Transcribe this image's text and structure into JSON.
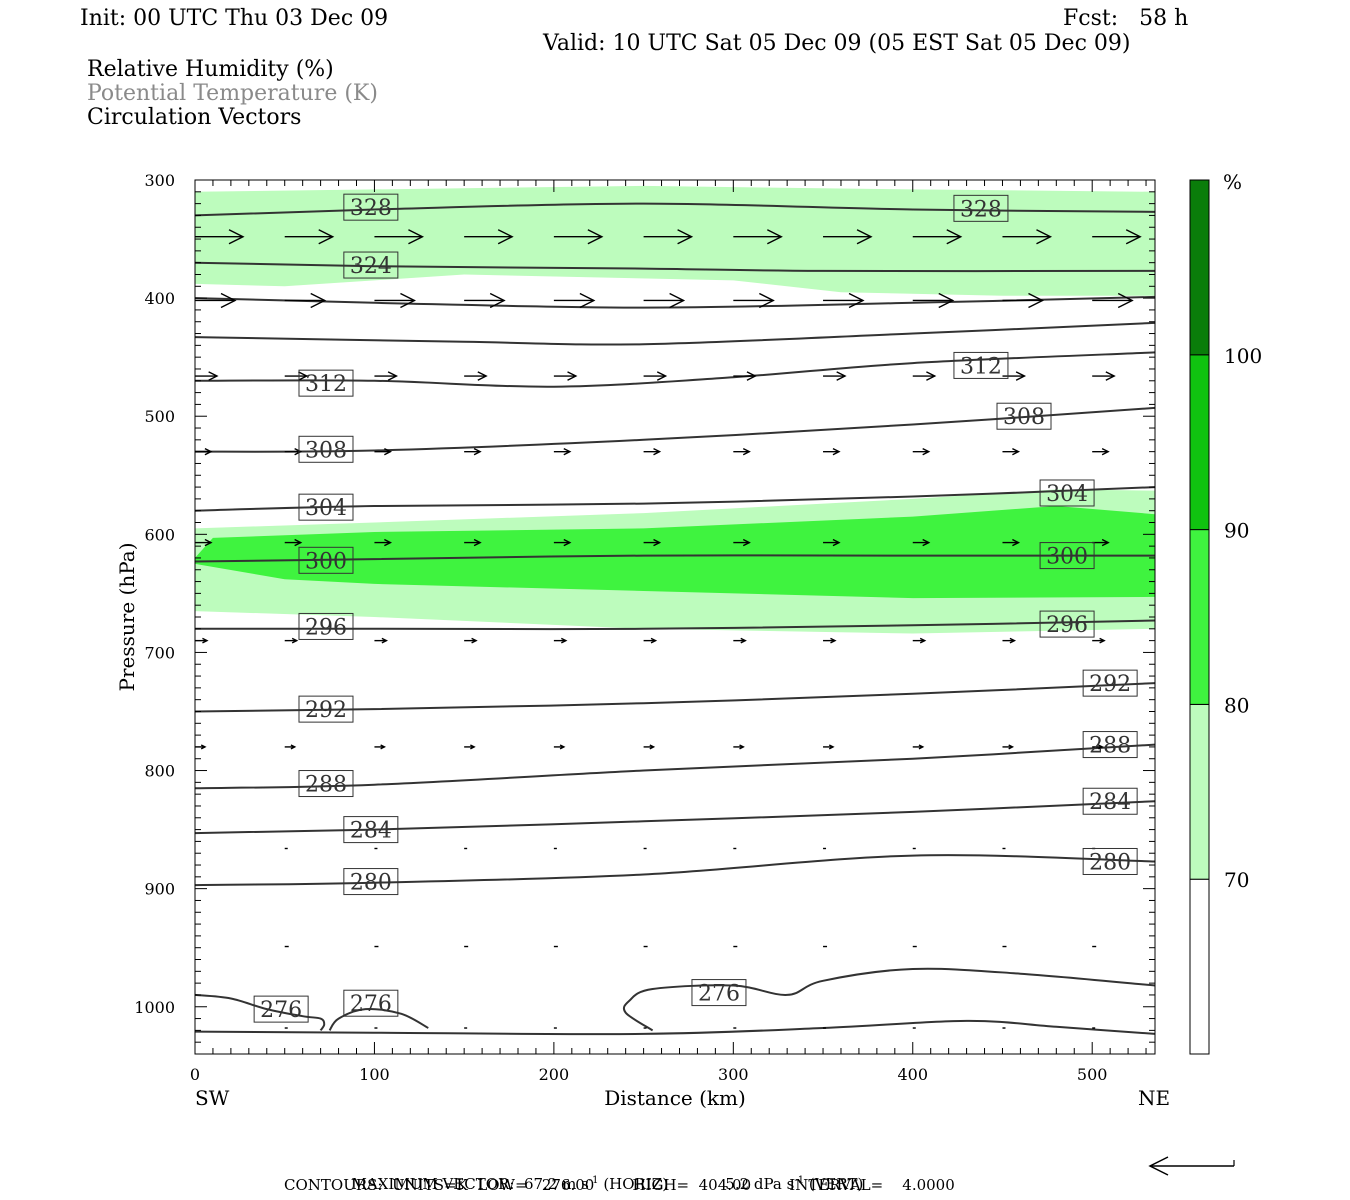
{
  "header": {
    "init": "Init: 00 UTC Thu 03 Dec 09",
    "fcst": "Fcst:   58 h",
    "valid": "Valid: 10 UTC Sat 05 Dec 09 (05 EST Sat 05 Dec 09)",
    "field1": "Relative Humidity (%)",
    "field2": "Potential Temperature (K)",
    "field3": "Circulation Vectors"
  },
  "footer": {
    "maxvec_label": "MAXIMUM VECTOR:",
    "maxvec_horiz": "67.2 m s",
    "horiz_tag": "(HORIZ)",
    "maxvec_vert": "5.2 dPa s",
    "vert_tag": "(VERT)",
    "exponent": "-1",
    "contours": "CONTOURS:  UNITS=K  LOW=   276.00        HIGH=  404.00        INTERVAL=    4.0000"
  },
  "colors": {
    "rh70": "#bdfcbd",
    "rh80": "#3ff33f",
    "rh90": "#10c310",
    "rh100": "#0a7d0a",
    "contour": "#333333"
  },
  "chart_data": {
    "type": "cross-section",
    "xlabel": "Distance (km)",
    "ylabel": "Pressure (hPa)",
    "x_ticks": [
      0,
      100,
      200,
      300,
      400,
      500
    ],
    "y_ticks": [
      300,
      400,
      500,
      600,
      700,
      800,
      900,
      1000
    ],
    "xlim": [
      0,
      535
    ],
    "ylim": [
      300,
      1040
    ],
    "x_end_labels": {
      "left": "SW",
      "right": "NE"
    },
    "colorbar": {
      "unit": "%",
      "levels": [
        70,
        80,
        90,
        100
      ]
    },
    "rh_regions": [
      {
        "level": 70,
        "top": [
          [
            0,
            310
          ],
          [
            100,
            308
          ],
          [
            250,
            305
          ],
          [
            400,
            308
          ],
          [
            535,
            310
          ]
        ],
        "bottom": [
          [
            0,
            388
          ],
          [
            50,
            390
          ],
          [
            150,
            380
          ],
          [
            300,
            385
          ],
          [
            360,
            395
          ],
          [
            450,
            398
          ],
          [
            535,
            398
          ]
        ]
      },
      {
        "level": 70,
        "top": [
          [
            0,
            595
          ],
          [
            100,
            590
          ],
          [
            250,
            582
          ],
          [
            400,
            570
          ],
          [
            480,
            562
          ],
          [
            535,
            563
          ]
        ],
        "bottom": [
          [
            0,
            665
          ],
          [
            100,
            670
          ],
          [
            250,
            680
          ],
          [
            400,
            684
          ],
          [
            535,
            680
          ]
        ]
      },
      {
        "level": 80,
        "top": [
          [
            0,
            620
          ],
          [
            10,
            603
          ],
          [
            100,
            598
          ],
          [
            250,
            595
          ],
          [
            400,
            585
          ],
          [
            480,
            576
          ],
          [
            535,
            583
          ]
        ],
        "bottom": [
          [
            0,
            625
          ],
          [
            50,
            638
          ],
          [
            100,
            642
          ],
          [
            250,
            648
          ],
          [
            400,
            654
          ],
          [
            535,
            653
          ]
        ]
      }
    ],
    "isentropes": [
      {
        "theta": 328,
        "pts": [
          [
            0,
            330
          ],
          [
            100,
            325
          ],
          [
            250,
            320
          ],
          [
            400,
            325
          ],
          [
            535,
            327
          ]
        ],
        "labels": [
          [
            98,
            323
          ],
          [
            438,
            324
          ]
        ]
      },
      {
        "theta": 324,
        "pts": [
          [
            0,
            370
          ],
          [
            100,
            373
          ],
          [
            250,
            375
          ],
          [
            350,
            377
          ],
          [
            535,
            377
          ]
        ],
        "labels": [
          [
            98,
            372
          ]
        ]
      },
      {
        "theta": 320,
        "pts": [
          [
            0,
            400
          ],
          [
            100,
            404
          ],
          [
            250,
            408
          ],
          [
            400,
            404
          ],
          [
            535,
            399
          ]
        ],
        "labels": []
      },
      {
        "theta": 316,
        "pts": [
          [
            0,
            433
          ],
          [
            150,
            437
          ],
          [
            250,
            439
          ],
          [
            400,
            430
          ],
          [
            535,
            421
          ]
        ],
        "labels": []
      },
      {
        "theta": 312,
        "pts": [
          [
            0,
            470
          ],
          [
            100,
            470
          ],
          [
            200,
            475
          ],
          [
            300,
            467
          ],
          [
            400,
            455
          ],
          [
            535,
            446
          ]
        ],
        "labels": [
          [
            73,
            472
          ],
          [
            438,
            457
          ]
        ]
      },
      {
        "theta": 308,
        "pts": [
          [
            0,
            530
          ],
          [
            100,
            529
          ],
          [
            250,
            520
          ],
          [
            400,
            507
          ],
          [
            535,
            493
          ]
        ],
        "labels": [
          [
            73,
            528
          ],
          [
            462,
            500
          ]
        ]
      },
      {
        "theta": 304,
        "pts": [
          [
            0,
            580
          ],
          [
            100,
            576
          ],
          [
            250,
            574
          ],
          [
            400,
            568
          ],
          [
            535,
            560
          ]
        ],
        "labels": [
          [
            73,
            577
          ],
          [
            486,
            565
          ]
        ]
      },
      {
        "theta": 300,
        "pts": [
          [
            0,
            623
          ],
          [
            100,
            621
          ],
          [
            250,
            618
          ],
          [
            400,
            618
          ],
          [
            535,
            618
          ]
        ],
        "labels": [
          [
            73,
            622
          ],
          [
            486,
            618
          ]
        ]
      },
      {
        "theta": 296,
        "pts": [
          [
            0,
            680
          ],
          [
            100,
            680
          ],
          [
            250,
            680
          ],
          [
            400,
            677
          ],
          [
            535,
            673
          ]
        ],
        "labels": [
          [
            73,
            678
          ],
          [
            486,
            676
          ]
        ]
      },
      {
        "theta": 292,
        "pts": [
          [
            0,
            750
          ],
          [
            100,
            748
          ],
          [
            250,
            743
          ],
          [
            400,
            735
          ],
          [
            535,
            726
          ]
        ],
        "labels": [
          [
            73,
            748
          ],
          [
            510,
            726
          ]
        ]
      },
      {
        "theta": 288,
        "pts": [
          [
            0,
            815
          ],
          [
            100,
            812
          ],
          [
            250,
            800
          ],
          [
            400,
            790
          ],
          [
            535,
            778
          ]
        ],
        "labels": [
          [
            73,
            811
          ],
          [
            510,
            778
          ]
        ]
      },
      {
        "theta": 284,
        "pts": [
          [
            0,
            853
          ],
          [
            100,
            850
          ],
          [
            250,
            843
          ],
          [
            400,
            835
          ],
          [
            535,
            826
          ]
        ],
        "labels": [
          [
            98,
            850
          ],
          [
            510,
            826
          ]
        ]
      },
      {
        "theta": 280,
        "pts": [
          [
            0,
            897
          ],
          [
            100,
            895
          ],
          [
            250,
            888
          ],
          [
            400,
            872
          ],
          [
            535,
            877
          ]
        ],
        "labels": [
          [
            98,
            894
          ],
          [
            510,
            877
          ]
        ]
      },
      {
        "theta": 276,
        "pts": [
          [
            0,
            990
          ],
          [
            20,
            993
          ],
          [
            40,
            1002
          ],
          [
            60,
            1008
          ],
          [
            70,
            1010
          ],
          [
            72,
            1015
          ],
          [
            70,
            1020
          ]
        ],
        "labels": [
          [
            48,
            1002
          ]
        ]
      },
      {
        "theta": 276,
        "pts": [
          [
            75,
            1020
          ],
          [
            80,
            1010
          ],
          [
            95,
            1002
          ],
          [
            115,
            1006
          ],
          [
            130,
            1018
          ]
        ],
        "labels": [
          [
            98,
            997
          ]
        ]
      },
      {
        "theta": 276,
        "pts": [
          [
            255,
            1020
          ],
          [
            240,
            1005
          ],
          [
            242,
            995
          ],
          [
            255,
            985
          ],
          [
            300,
            982
          ],
          [
            330,
            990
          ],
          [
            350,
            978
          ],
          [
            400,
            968
          ],
          [
            460,
            972
          ],
          [
            535,
            982
          ]
        ],
        "labels": [
          [
            292,
            988
          ]
        ]
      },
      {
        "theta": 276,
        "pts": [
          [
            0,
            1021
          ],
          [
            100,
            1022
          ],
          [
            250,
            1023
          ],
          [
            350,
            1018
          ],
          [
            430,
            1012
          ],
          [
            480,
            1017
          ],
          [
            535,
            1023
          ]
        ],
        "labels": []
      }
    ],
    "vectors": [
      {
        "p": 348,
        "dx": 48,
        "x": [
          0,
          50,
          100,
          150,
          200,
          250,
          300,
          350,
          400,
          450,
          500
        ]
      },
      {
        "p": 402,
        "dx": 40,
        "x": [
          0,
          50,
          100,
          150,
          200,
          250,
          300,
          350,
          400,
          450,
          500
        ]
      },
      {
        "p": 466,
        "dx": 22,
        "x": [
          0,
          50,
          100,
          150,
          200,
          250,
          300,
          350,
          400,
          450,
          500
        ]
      },
      {
        "p": 530,
        "dx": 16,
        "x": [
          0,
          50,
          100,
          150,
          200,
          250,
          300,
          350,
          400,
          450,
          500
        ]
      },
      {
        "p": 607,
        "dx": 16,
        "x": [
          0,
          50,
          100,
          150,
          200,
          250,
          300,
          350,
          400,
          450,
          500
        ]
      },
      {
        "p": 690,
        "dx": 12,
        "x": [
          0,
          50,
          100,
          150,
          200,
          250,
          300,
          350,
          400,
          450,
          500
        ]
      },
      {
        "p": 780,
        "dx": 10,
        "x": [
          0,
          50,
          100,
          150,
          200,
          250,
          300,
          350,
          400,
          450,
          500
        ]
      },
      {
        "p": 866,
        "dx": 3,
        "x": [
          50,
          100,
          150,
          200,
          250,
          300,
          350,
          400,
          450,
          500
        ]
      },
      {
        "p": 949,
        "dx": 4,
        "x": [
          50,
          100,
          150,
          200,
          250,
          300,
          350,
          400,
          450,
          500
        ]
      },
      {
        "p": 1018,
        "dx": 3,
        "x": [
          50,
          100,
          150,
          200,
          250,
          300,
          350,
          400,
          450,
          500
        ]
      }
    ]
  }
}
